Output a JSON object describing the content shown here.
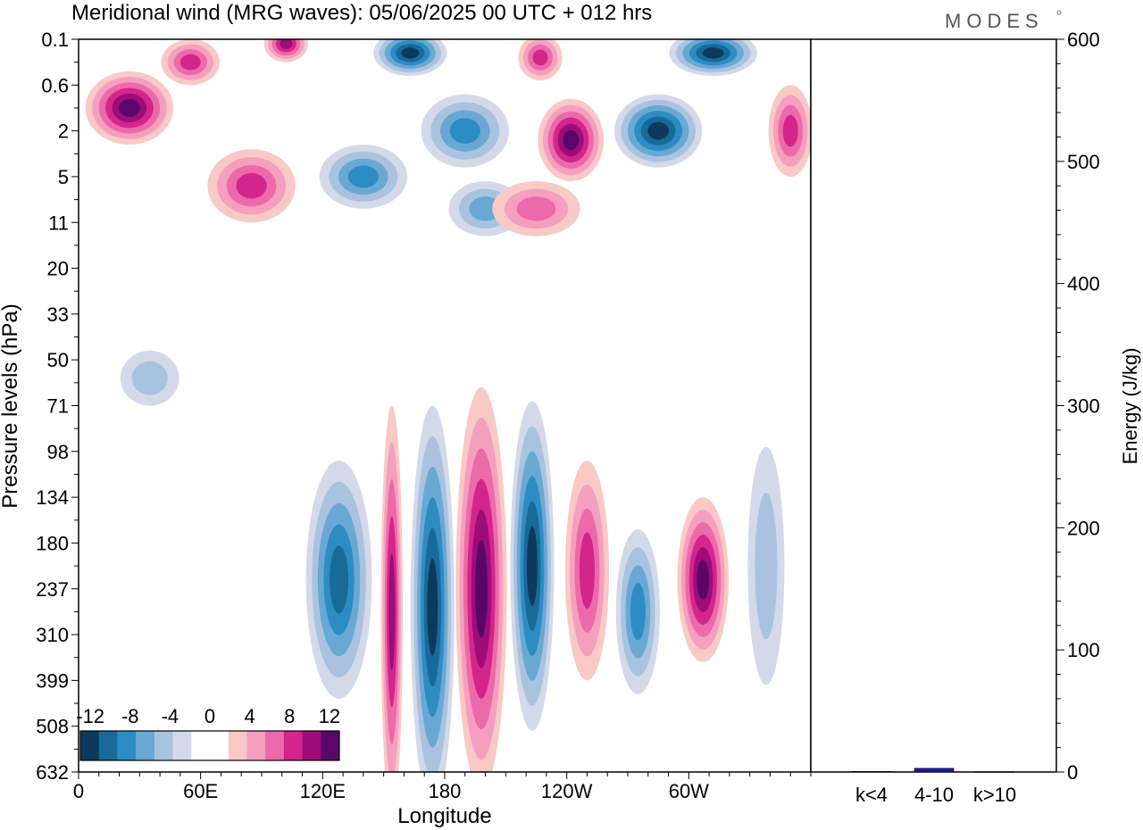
{
  "header": {
    "title": "Meridional wind (MRG waves):  05/06/2025  00 UTC  + 012 hrs",
    "logo": "MODES"
  },
  "colors": {
    "neg": [
      "#0d3a5c",
      "#1a6a99",
      "#2e8cc4",
      "#6aa8d4",
      "#a9c3df",
      "#d4d9ea"
    ],
    "pos": [
      "#f9c9c6",
      "#f59fbf",
      "#ec6aa9",
      "#d4258c",
      "#9e0c7a",
      "#58066a"
    ],
    "energy_bar": "#1a1ab0"
  },
  "chart_data": [
    {
      "type": "heatmap",
      "title": "Meridional wind (MRG waves):  05/06/2025  00 UTC  + 012 hrs",
      "xlabel": "Longitude",
      "ylabel": "Pressure levels (hPa)",
      "x_ticks": [
        "0",
        "60E",
        "120E",
        "180",
        "120W",
        "60W"
      ],
      "x_tick_values": [
        0,
        60,
        120,
        180,
        240,
        300
      ],
      "x_range": [
        0,
        360
      ],
      "y_levels": [
        "0.1",
        "0.6",
        "2",
        "5",
        "11",
        "20",
        "33",
        "50",
        "71",
        "98",
        "134",
        "180",
        "237",
        "310",
        "399",
        "508",
        "632"
      ],
      "colorbar": {
        "labels": [
          "-12",
          "-8",
          "-4",
          "0",
          "4",
          "8",
          "12"
        ],
        "levels": [
          -12,
          -10,
          -8,
          -6,
          -4,
          -2,
          0,
          2,
          4,
          6,
          8,
          10,
          12
        ]
      },
      "features": [
        {
          "lon": 128,
          "level_index": 11.8,
          "value": -9,
          "dlon": 9,
          "dlev": 2.6
        },
        {
          "lon": 154,
          "level_index": 12.5,
          "value": 9,
          "dlon": 3,
          "dlev": 4.5
        },
        {
          "lon": 174,
          "level_index": 12.4,
          "value": -12,
          "dlon": 6,
          "dlev": 4.4
        },
        {
          "lon": 198,
          "level_index": 12.0,
          "value": 15,
          "dlon": 7,
          "dlev": 4.4
        },
        {
          "lon": 223,
          "level_index": 11.5,
          "value": -12,
          "dlon": 6,
          "dlev": 3.6
        },
        {
          "lon": 250,
          "level_index": 11.6,
          "value": 7,
          "dlon": 6,
          "dlev": 2.4
        },
        {
          "lon": 275,
          "level_index": 12.5,
          "value": -8,
          "dlon": 6,
          "dlev": 1.8
        },
        {
          "lon": 307,
          "level_index": 11.8,
          "value": 11,
          "dlon": 7,
          "dlev": 1.8
        },
        {
          "lon": 338,
          "level_index": 11.5,
          "value": -4,
          "dlon": 5,
          "dlev": 2.6
        },
        {
          "lon": 25,
          "level_index": 1.5,
          "value": 13,
          "dlon": 12,
          "dlev": 0.8
        },
        {
          "lon": 55,
          "level_index": 0.5,
          "value": 8,
          "dlon": 8,
          "dlev": 0.5
        },
        {
          "lon": 102,
          "level_index": 0.1,
          "value": 9,
          "dlon": 6,
          "dlev": 0.4
        },
        {
          "lon": 163,
          "level_index": 0.3,
          "value": -12,
          "dlon": 10,
          "dlev": 0.5
        },
        {
          "lon": 312,
          "level_index": 0.3,
          "value": -12,
          "dlon": 12,
          "dlev": 0.5
        },
        {
          "lon": 227,
          "level_index": 0.4,
          "value": 7,
          "dlon": 6,
          "dlev": 0.5
        },
        {
          "lon": 242,
          "level_index": 2.2,
          "value": 11,
          "dlon": 9,
          "dlev": 0.9
        },
        {
          "lon": 285,
          "level_index": 2.0,
          "value": -11,
          "dlon": 12,
          "dlev": 0.8
        },
        {
          "lon": 190,
          "level_index": 2.0,
          "value": -8,
          "dlon": 12,
          "dlev": 0.8
        },
        {
          "lon": 85,
          "level_index": 3.2,
          "value": 8,
          "dlon": 12,
          "dlev": 0.8
        },
        {
          "lon": 140,
          "level_index": 3.0,
          "value": -8,
          "dlon": 12,
          "dlev": 0.7
        },
        {
          "lon": 200,
          "level_index": 3.7,
          "value": -6,
          "dlon": 10,
          "dlev": 0.6
        },
        {
          "lon": 225,
          "level_index": 3.7,
          "value": 6,
          "dlon": 12,
          "dlev": 0.6
        },
        {
          "lon": 350,
          "level_index": 2.0,
          "value": 8,
          "dlon": 6,
          "dlev": 1.0
        },
        {
          "lon": 35,
          "level_index": 7.4,
          "value": -4,
          "dlon": 8,
          "dlev": 0.6
        }
      ]
    },
    {
      "type": "bar",
      "ylabel": "Energy (J/kg)",
      "categories": [
        "k<4",
        "4-10",
        "k>10"
      ],
      "values": [
        0.5,
        3,
        0.3
      ],
      "ylim": [
        0,
        600
      ],
      "y_ticks": [
        "0",
        "100",
        "200",
        "300",
        "400",
        "500",
        "600"
      ],
      "y_tick_values": [
        0,
        100,
        200,
        300,
        400,
        500,
        600
      ]
    }
  ]
}
